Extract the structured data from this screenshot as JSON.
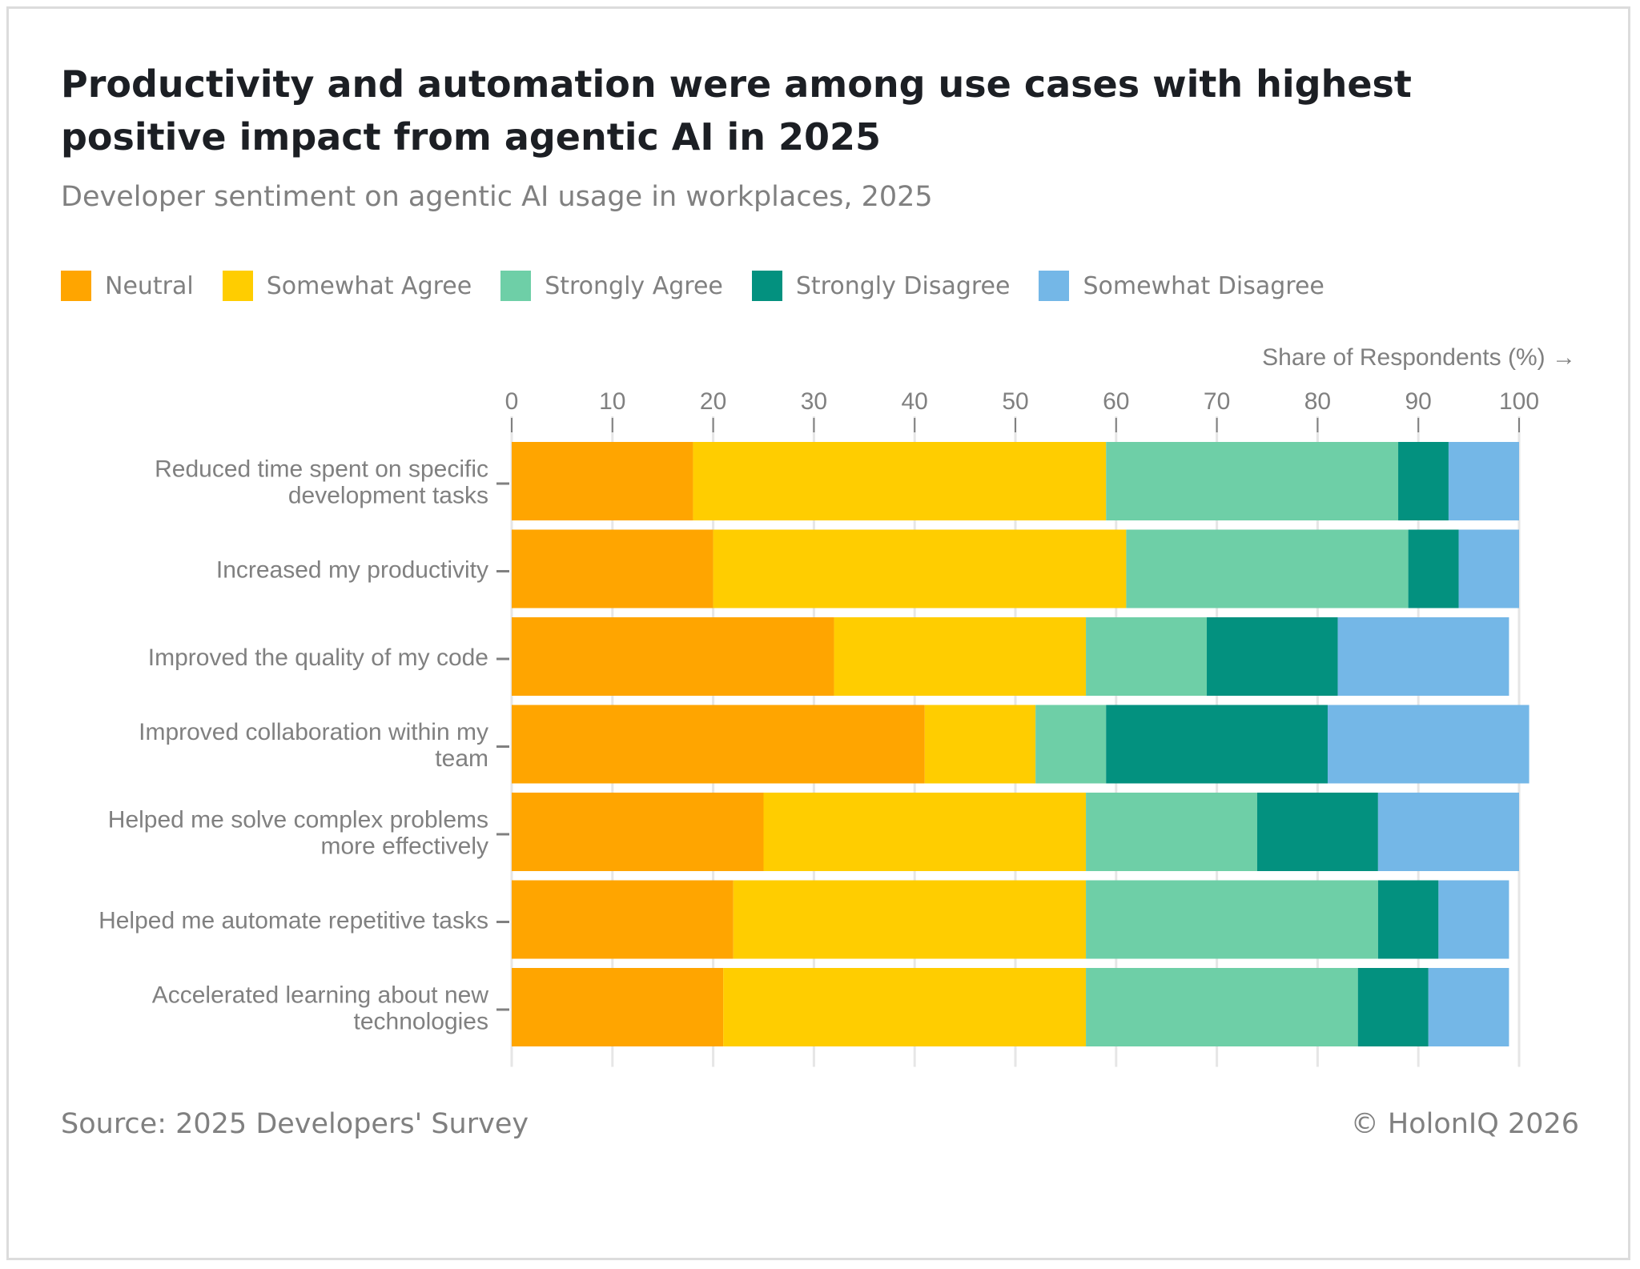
{
  "header": {
    "title": "Productivity and automation were among use cases with highest positive impact from agentic AI in 2025",
    "subtitle": "Developer sentiment on agentic AI usage in workplaces, 2025"
  },
  "footer": {
    "source": "Source: 2025 Developers' Survey",
    "copyright": "© HolonIQ 2026"
  },
  "chart_data": {
    "type": "bar",
    "orientation": "horizontal",
    "stacked": true,
    "title": "Productivity and automation were among use cases with highest positive impact from agentic AI in 2025",
    "subtitle": "Developer sentiment on agentic AI usage in workplaces, 2025",
    "xlabel": "Share of Respondents (%) →",
    "ylabel": "",
    "xlim": [
      0,
      100
    ],
    "xticks": [
      0,
      10,
      20,
      30,
      40,
      50,
      60,
      70,
      80,
      90,
      100
    ],
    "grid": true,
    "legend_position": "top-left",
    "categories": [
      "Reduced time spent on specific development tasks",
      "Increased my productivity",
      "Improved the quality of my code",
      "Improved collaboration within my team",
      "Helped me solve complex problems more effectively",
      "Helped me automate repetitive tasks",
      "Accelerated learning about new technologies"
    ],
    "category_lines": [
      [
        "Reduced time spent on specific",
        "development tasks"
      ],
      [
        "Increased my productivity"
      ],
      [
        "Improved the quality of my code"
      ],
      [
        "Improved collaboration within my",
        "team"
      ],
      [
        "Helped me solve complex problems",
        "more effectively"
      ],
      [
        "Helped me automate repetitive tasks"
      ],
      [
        "Accelerated learning about new",
        "technologies"
      ]
    ],
    "series": [
      {
        "name": "Neutral",
        "color": "#FFA500",
        "values": [
          18,
          20,
          32,
          41,
          25,
          22,
          21
        ]
      },
      {
        "name": "Somewhat Agree",
        "color": "#FFCD00",
        "values": [
          41,
          41,
          25,
          11,
          32,
          35,
          36
        ]
      },
      {
        "name": "Strongly Agree",
        "color": "#6ECFA7",
        "values": [
          29,
          28,
          12,
          7,
          17,
          29,
          27
        ]
      },
      {
        "name": "Strongly Disagree",
        "color": "#03917F",
        "values": [
          5,
          5,
          13,
          22,
          12,
          6,
          7
        ]
      },
      {
        "name": "Somewhat Disagree",
        "color": "#74B7E7",
        "values": [
          7,
          6,
          17,
          20,
          14,
          7,
          8
        ]
      }
    ]
  }
}
